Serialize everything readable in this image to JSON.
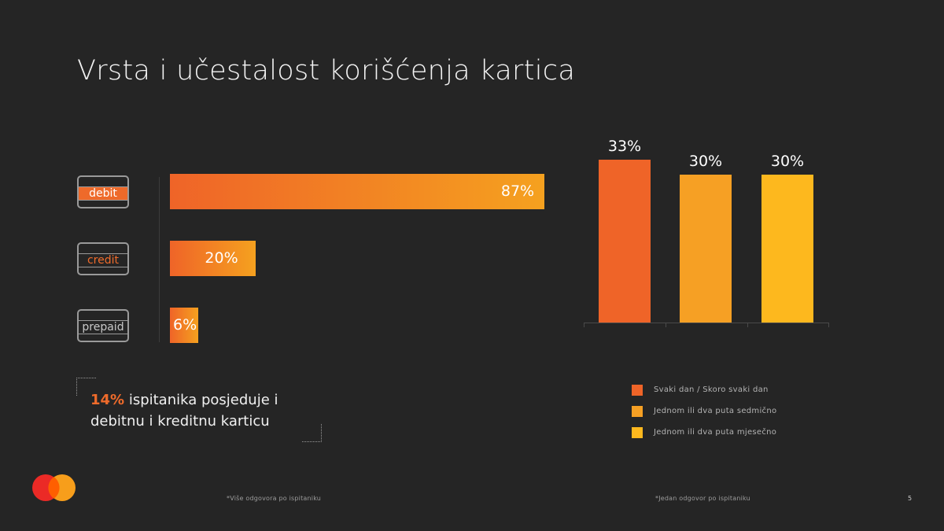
{
  "title": "Vrsta i učestalost korišćenja kartica",
  "colors": {
    "background": "#252525",
    "orange_red": "#ef6428",
    "orange": "#f6a024",
    "yellow": "#fdb81e"
  },
  "chart_data": [
    {
      "type": "bar",
      "orientation": "horizontal",
      "categories": [
        "debit",
        "credit",
        "prepaid"
      ],
      "values": [
        87,
        20,
        6
      ],
      "value_labels": [
        "87%",
        "20%",
        "6%"
      ],
      "xlim": [
        0,
        100
      ],
      "title": "",
      "xlabel": "",
      "ylabel": ""
    },
    {
      "type": "bar",
      "orientation": "vertical",
      "categories": [
        "Svaki dan / Skoro svaki dan",
        "Jednom ili dva puta sedmično",
        "Jednom ili dva puta mjesečno"
      ],
      "values": [
        33,
        30,
        30
      ],
      "value_labels": [
        "33%",
        "30%",
        "30%"
      ],
      "colors": [
        "#ef6428",
        "#f6a024",
        "#fdb81e"
      ],
      "ylim": [
        0,
        35
      ],
      "legend": "bottom",
      "title": "",
      "xlabel": "",
      "ylabel": ""
    }
  ],
  "callout": {
    "highlight": "14%",
    "text": " ispitanika posjeduje i debitnu i kreditnu karticu"
  },
  "footnotes": {
    "left": "*Više odgovora po ispitaniku",
    "right": "*Jedan odgovor po ispitaniku"
  },
  "page_number": "5",
  "logo": {
    "name": "mastercard-logo",
    "colors": [
      "#eb2a26",
      "#f79e1b"
    ]
  }
}
